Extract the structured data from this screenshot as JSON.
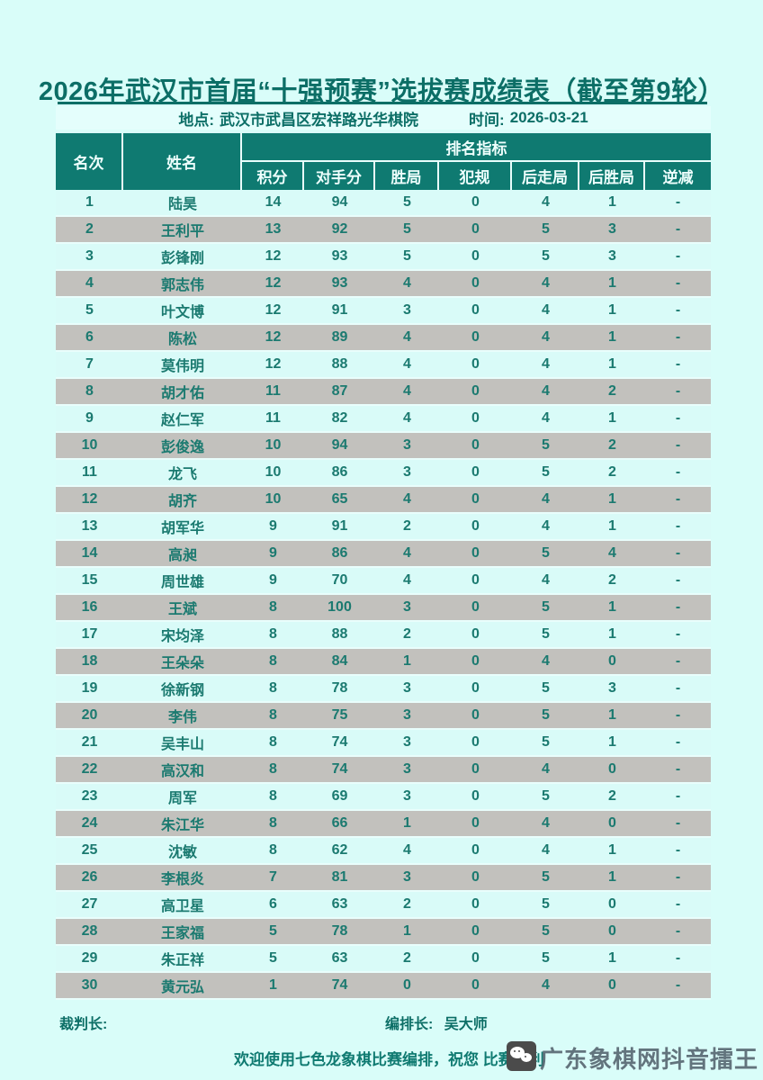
{
  "header": {
    "title": "2026年武汉市首届“十强预赛”选拔赛成绩表（截至第9轮）",
    "location_label": "地点:",
    "location": "武汉市武昌区宏祥路光华棋院",
    "time_label": "时间:",
    "time": "2026-03-21"
  },
  "table": {
    "col_rank": "名次",
    "col_name": "姓名",
    "col_group": "排名指标",
    "sub_columns": [
      "积分",
      "对手分",
      "胜局",
      "犯规",
      "后走局",
      "后胜局",
      "逆减"
    ],
    "rows": [
      [
        "1",
        "陆昊",
        "14",
        "94",
        "5",
        "0",
        "4",
        "1",
        "-"
      ],
      [
        "2",
        "王利平",
        "13",
        "92",
        "5",
        "0",
        "5",
        "3",
        "-"
      ],
      [
        "3",
        "彭锋刚",
        "12",
        "93",
        "5",
        "0",
        "5",
        "3",
        "-"
      ],
      [
        "4",
        "郭志伟",
        "12",
        "93",
        "4",
        "0",
        "4",
        "1",
        "-"
      ],
      [
        "5",
        "叶文博",
        "12",
        "91",
        "3",
        "0",
        "4",
        "1",
        "-"
      ],
      [
        "6",
        "陈松",
        "12",
        "89",
        "4",
        "0",
        "4",
        "1",
        "-"
      ],
      [
        "7",
        "莫伟明",
        "12",
        "88",
        "4",
        "0",
        "4",
        "1",
        "-"
      ],
      [
        "8",
        "胡才佑",
        "11",
        "87",
        "4",
        "0",
        "4",
        "2",
        "-"
      ],
      [
        "9",
        "赵仁军",
        "11",
        "82",
        "4",
        "0",
        "4",
        "1",
        "-"
      ],
      [
        "10",
        "彭俊逸",
        "10",
        "94",
        "3",
        "0",
        "5",
        "2",
        "-"
      ],
      [
        "11",
        "龙飞",
        "10",
        "86",
        "3",
        "0",
        "5",
        "2",
        "-"
      ],
      [
        "12",
        "胡齐",
        "10",
        "65",
        "4",
        "0",
        "4",
        "1",
        "-"
      ],
      [
        "13",
        "胡军华",
        "9",
        "91",
        "2",
        "0",
        "4",
        "1",
        "-"
      ],
      [
        "14",
        "高昶",
        "9",
        "86",
        "4",
        "0",
        "5",
        "4",
        "-"
      ],
      [
        "15",
        "周世雄",
        "9",
        "70",
        "4",
        "0",
        "4",
        "2",
        "-"
      ],
      [
        "16",
        "王斌",
        "8",
        "100",
        "3",
        "0",
        "5",
        "1",
        "-"
      ],
      [
        "17",
        "宋均泽",
        "8",
        "88",
        "2",
        "0",
        "5",
        "1",
        "-"
      ],
      [
        "18",
        "王朵朵",
        "8",
        "84",
        "1",
        "0",
        "4",
        "0",
        "-"
      ],
      [
        "19",
        "徐新钢",
        "8",
        "78",
        "3",
        "0",
        "5",
        "3",
        "-"
      ],
      [
        "20",
        "李伟",
        "8",
        "75",
        "3",
        "0",
        "5",
        "1",
        "-"
      ],
      [
        "21",
        "吴丰山",
        "8",
        "74",
        "3",
        "0",
        "5",
        "1",
        "-"
      ],
      [
        "22",
        "高汉和",
        "8",
        "74",
        "3",
        "0",
        "4",
        "0",
        "-"
      ],
      [
        "23",
        "周军",
        "8",
        "69",
        "3",
        "0",
        "5",
        "2",
        "-"
      ],
      [
        "24",
        "朱江华",
        "8",
        "66",
        "1",
        "0",
        "4",
        "0",
        "-"
      ],
      [
        "25",
        "沈敏",
        "8",
        "62",
        "4",
        "0",
        "4",
        "1",
        "-"
      ],
      [
        "26",
        "李根炎",
        "7",
        "81",
        "3",
        "0",
        "5",
        "1",
        "-"
      ],
      [
        "27",
        "高卫星",
        "6",
        "63",
        "2",
        "0",
        "5",
        "0",
        "-"
      ],
      [
        "28",
        "王家福",
        "5",
        "78",
        "1",
        "0",
        "5",
        "0",
        "-"
      ],
      [
        "29",
        "朱正祥",
        "5",
        "63",
        "2",
        "0",
        "5",
        "1",
        "-"
      ],
      [
        "30",
        "黄元弘",
        "1",
        "74",
        "0",
        "0",
        "4",
        "0",
        "-"
      ]
    ]
  },
  "footer": {
    "referee_label": "裁判长:",
    "arranger_label": "编排长:",
    "arranger_name": "吴大师",
    "welcome": "欢迎使用七色龙象棋比赛编排，祝您 比赛顺利",
    "watermark": "广东象棋网抖音擂王",
    "wechat_icon": "wechat-icon"
  },
  "colors": {
    "page_bg": "#d9fdf9",
    "header_teal": "#0f7a71",
    "title_text": "#0c6e66",
    "data_text": "#1b7a70",
    "row_gray": "#c2c1bd",
    "row_cyan": "#d9fbf8"
  }
}
